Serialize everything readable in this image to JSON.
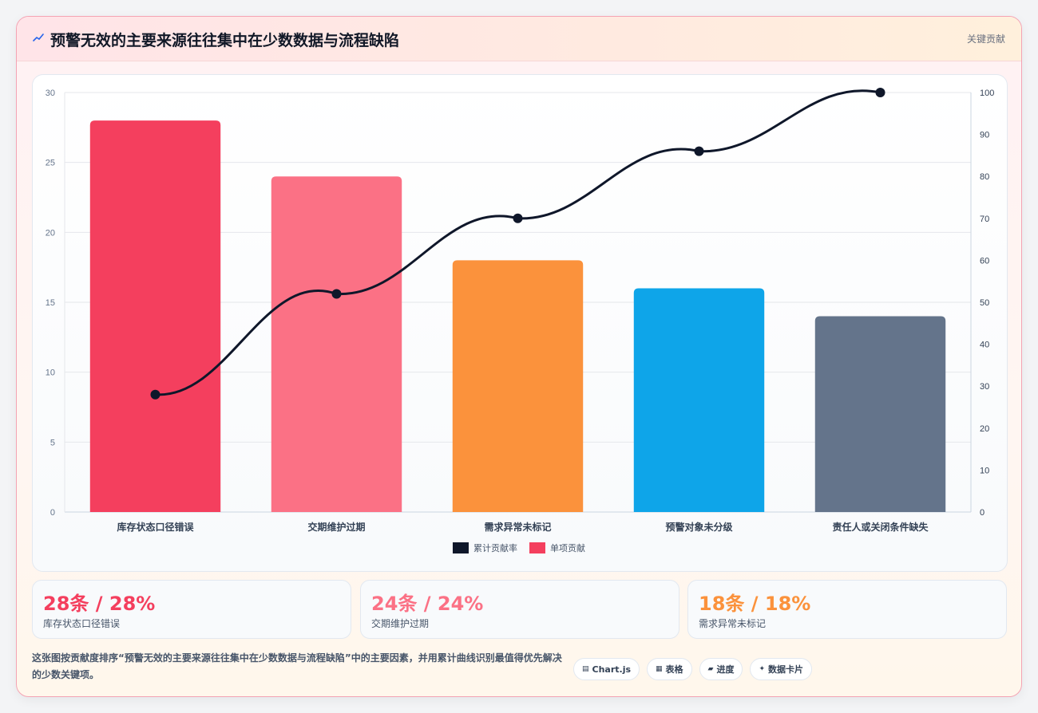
{
  "header": {
    "icon": "sparkline-icon",
    "title": "预警无效的主要来源往往集中在少数数据与流程缺陷",
    "tag": "关键贡献"
  },
  "chart_data": {
    "type": "bar",
    "categories": [
      "库存状态口径错误",
      "交期维护过期",
      "需求异常未标记",
      "预警对象未分级",
      "责任人或关闭条件缺失"
    ],
    "series": [
      {
        "name": "单项贡献",
        "type": "bar",
        "axis": "left",
        "values": [
          28,
          24,
          18,
          16,
          14
        ],
        "colors": [
          "#f43f5e",
          "#fb7185",
          "#fb923c",
          "#0ea5e9",
          "#64748b"
        ]
      },
      {
        "name": "累计贡献率",
        "type": "line",
        "axis": "right",
        "values": [
          28,
          52,
          70,
          86,
          100
        ],
        "color": "#0f172a"
      }
    ],
    "y_left": {
      "min": 0,
      "max": 30,
      "ticks": [
        0,
        5,
        10,
        15,
        20,
        25,
        30
      ]
    },
    "y_right": {
      "min": 0,
      "max": 100,
      "ticks": [
        0,
        10,
        20,
        30,
        40,
        50,
        60,
        70,
        80,
        90,
        100
      ]
    },
    "legend": {
      "position": "bottom",
      "items": [
        {
          "label": "累计贡献率",
          "color": "#0f172a"
        },
        {
          "label": "单项贡献",
          "color": "#f43f5e"
        }
      ]
    },
    "grid": true
  },
  "kpis": [
    {
      "value": "28条 / 28%",
      "label": "库存状态口径错误",
      "color": "#f43f5e"
    },
    {
      "value": "24条 / 24%",
      "label": "交期维护过期",
      "color": "#fb7185"
    },
    {
      "value": "18条 / 18%",
      "label": "需求异常未标记",
      "color": "#fb923c"
    }
  ],
  "description": "这张图按贡献度排序“预警无效的主要来源往往集中在少数数据与流程缺陷”中的主要因素，并用累计曲线识别最值得优先解决的少数关键项。",
  "chips": [
    {
      "icon": "chart-icon",
      "label": "Chart.js"
    },
    {
      "icon": "table-icon",
      "label": "表格"
    },
    {
      "icon": "progress-icon",
      "label": "进度"
    },
    {
      "icon": "data-card-icon",
      "label": "数据卡片"
    }
  ]
}
